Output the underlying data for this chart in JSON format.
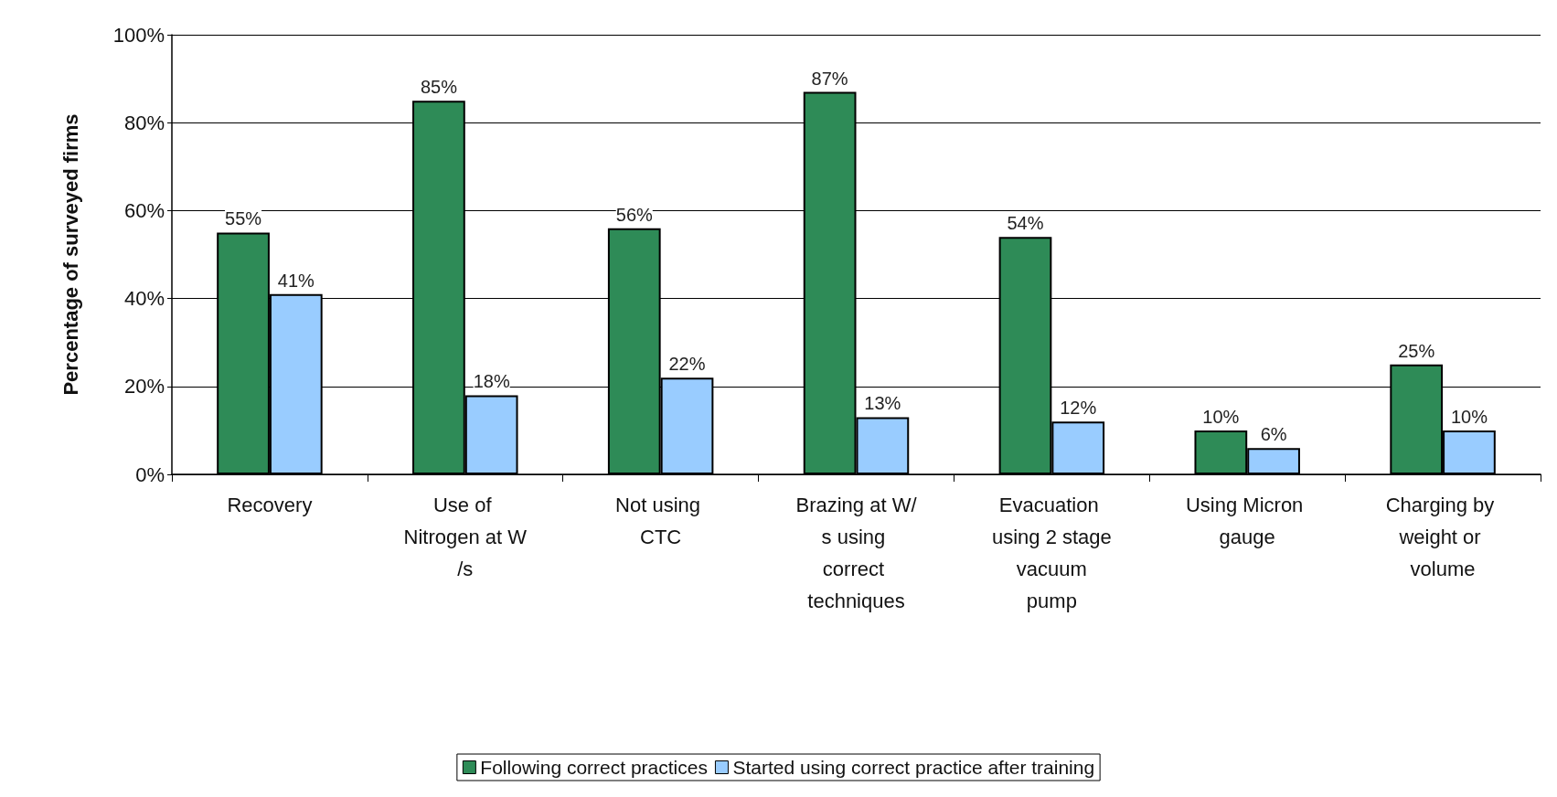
{
  "chart_data": {
    "type": "bar",
    "ylabel": "Percentage of surveyed firms",
    "categories": [
      "Recovery",
      "Use of Nitrogen at W/s",
      "Not using CTC",
      "Brazing at W/s using correct techniques",
      "Evacuation using 2 stage vacuum pump",
      "Using Micron gauge",
      "Charging by weight or volume"
    ],
    "series": [
      {
        "name": "Following correct practices",
        "color": "#2e8b57",
        "values": [
          55,
          85,
          56,
          87,
          54,
          10,
          25
        ],
        "value_labels": [
          "55%",
          "85%",
          "56%",
          "87%",
          "54%",
          "10%",
          "25%"
        ]
      },
      {
        "name": "Started using correct practice after training",
        "color": "#99ccff",
        "values": [
          41,
          18,
          22,
          13,
          12,
          6,
          10
        ],
        "value_labels": [
          "41%",
          "18%",
          "22%",
          "13%",
          "12%",
          "6%",
          "10%"
        ]
      }
    ],
    "ylim": [
      0,
      100
    ],
    "yticks": [
      {
        "value": 0,
        "label": "0%"
      },
      {
        "value": 20,
        "label": "20%"
      },
      {
        "value": 40,
        "label": "40%"
      },
      {
        "value": 60,
        "label": "60%"
      },
      {
        "value": 80,
        "label": "80%"
      },
      {
        "value": 100,
        "label": "100%"
      }
    ],
    "grid": "y",
    "legend": "bottom"
  }
}
